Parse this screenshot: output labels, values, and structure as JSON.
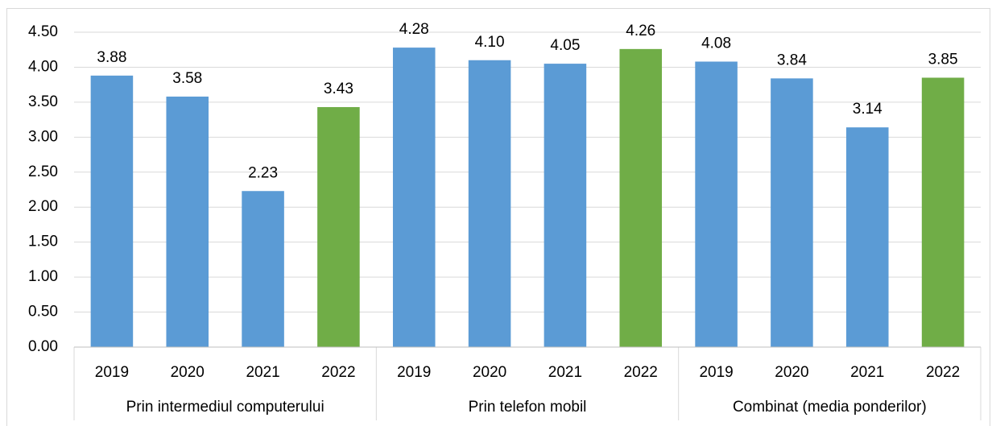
{
  "chart_data": {
    "type": "bar",
    "groups": [
      {
        "name": "Prin intermediul computerului",
        "categories": [
          "2019",
          "2020",
          "2021",
          "2022"
        ],
        "values": [
          3.88,
          3.58,
          2.23,
          3.43
        ],
        "value_labels": [
          "3.88",
          "3.58",
          "2.23",
          "3.43"
        ],
        "colors": [
          "#5b9bd5",
          "#5b9bd5",
          "#5b9bd5",
          "#70ad47"
        ]
      },
      {
        "name": "Prin telefon mobil",
        "categories": [
          "2019",
          "2020",
          "2021",
          "2022"
        ],
        "values": [
          4.28,
          4.1,
          4.05,
          4.26
        ],
        "value_labels": [
          "4.28",
          "4.10",
          "4.05",
          "4.26"
        ],
        "colors": [
          "#5b9bd5",
          "#5b9bd5",
          "#5b9bd5",
          "#70ad47"
        ]
      },
      {
        "name": "Combinat (media ponderilor)",
        "categories": [
          "2019",
          "2020",
          "2021",
          "2022"
        ],
        "values": [
          4.08,
          3.84,
          3.14,
          3.85
        ],
        "value_labels": [
          "4.08",
          "3.84",
          "3.14",
          "3.85"
        ],
        "colors": [
          "#5b9bd5",
          "#5b9bd5",
          "#5b9bd5",
          "#70ad47"
        ]
      }
    ],
    "ylim": [
      0,
      4.5
    ],
    "yticks": [
      {
        "value": 0,
        "label": "0.00"
      },
      {
        "value": 0.5,
        "label": "0.50"
      },
      {
        "value": 1,
        "label": "1.00"
      },
      {
        "value": 1.5,
        "label": "1.50"
      },
      {
        "value": 2,
        "label": "2.00"
      },
      {
        "value": 2.5,
        "label": "2.50"
      },
      {
        "value": 3,
        "label": "3.00"
      },
      {
        "value": 3.5,
        "label": "3.50"
      },
      {
        "value": 4,
        "label": "4.00"
      },
      {
        "value": 4.5,
        "label": "4.50"
      }
    ],
    "grid": true
  }
}
